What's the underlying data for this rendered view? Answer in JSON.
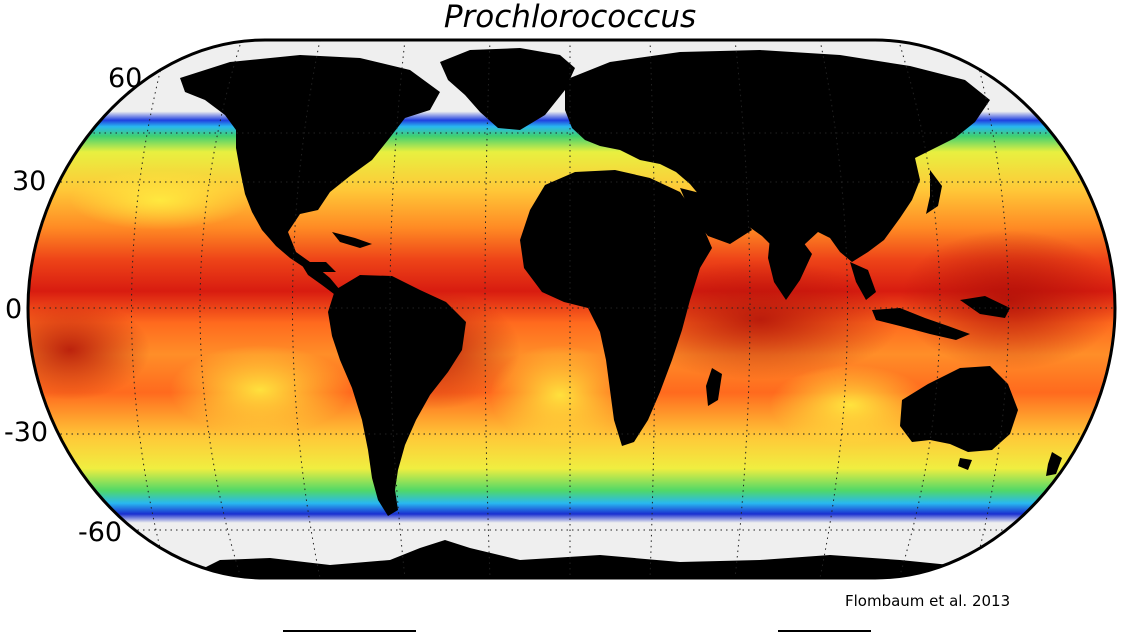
{
  "title": "Prochlorococcus",
  "latitude_labels": [
    "60",
    "30",
    "0",
    "-30",
    "-60"
  ],
  "credit": "Flombaum et al. 2013",
  "colors": {
    "land": "#000000",
    "no_data": "#efefef",
    "ocean_high": "#d41a10",
    "ocean_mid": "#ff7a1a",
    "ocean_low": "#ffe640",
    "edge_green": "#34d060",
    "edge_cyan": "#29b8f0",
    "edge_blue": "#1a2fd0"
  }
}
